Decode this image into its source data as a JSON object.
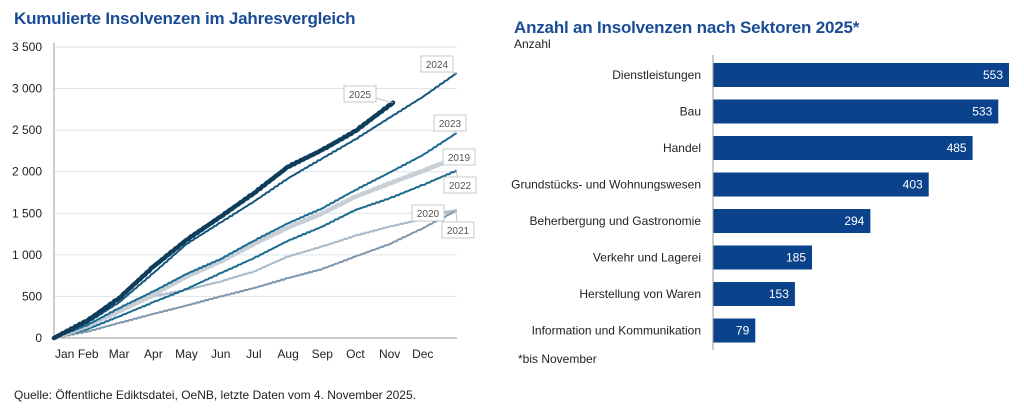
{
  "chart_data": [
    {
      "type": "line",
      "title": "Kumulierte Insolvenzen im Jahresvergleich",
      "xlabel": "",
      "ylabel": "",
      "x_tick_labels": [
        "Jan",
        "Feb",
        "Mar",
        "Apr",
        "May",
        "Jun",
        "Jul",
        "Aug",
        "Sep",
        "Oct",
        "Nov",
        "Dec"
      ],
      "y_tick_labels": [
        "0",
        "500",
        "1 000",
        "1 500",
        "2 000",
        "2 500",
        "3 000",
        "3 500"
      ],
      "ylim": [
        0,
        3500
      ],
      "grid": "horizontal",
      "series": [
        {
          "name": "2021",
          "color": "#7f97ad",
          "width": 2,
          "points": [
            [
              "01-01",
              0
            ],
            [
              "02-01",
              80
            ],
            [
              "03-01",
              180
            ],
            [
              "04-01",
              290
            ],
            [
              "05-01",
              390
            ],
            [
              "06-01",
              500
            ],
            [
              "07-01",
              600
            ],
            [
              "08-01",
              720
            ],
            [
              "09-01",
              830
            ],
            [
              "10-01",
              980
            ],
            [
              "11-01",
              1130
            ],
            [
              "12-01",
              1320
            ],
            [
              "12-31",
              1530
            ]
          ]
        },
        {
          "name": "2020",
          "color": "#a9b9c8",
          "width": 2,
          "points": [
            [
              "01-01",
              0
            ],
            [
              "02-01",
              140
            ],
            [
              "03-01",
              320
            ],
            [
              "04-01",
              500
            ],
            [
              "05-01",
              580
            ],
            [
              "06-01",
              680
            ],
            [
              "07-01",
              800
            ],
            [
              "08-01",
              980
            ],
            [
              "09-01",
              1100
            ],
            [
              "10-01",
              1230
            ],
            [
              "11-01",
              1340
            ],
            [
              "12-01",
              1430
            ],
            [
              "12-31",
              1540
            ]
          ]
        },
        {
          "name": "2022",
          "color": "#1b6a90",
          "width": 2,
          "points": [
            [
              "01-01",
              0
            ],
            [
              "02-01",
              110
            ],
            [
              "03-01",
              260
            ],
            [
              "04-01",
              430
            ],
            [
              "05-01",
              590
            ],
            [
              "06-01",
              780
            ],
            [
              "07-01",
              960
            ],
            [
              "08-01",
              1170
            ],
            [
              "09-01",
              1340
            ],
            [
              "10-01",
              1540
            ],
            [
              "11-01",
              1680
            ],
            [
              "12-01",
              1840
            ],
            [
              "12-31",
              2010
            ]
          ]
        },
        {
          "name": "2019",
          "color": "#c8cfd6",
          "width": 4.5,
          "points": [
            [
              "01-01",
              0
            ],
            [
              "02-01",
              150
            ],
            [
              "03-01",
              320
            ],
            [
              "04-01",
              520
            ],
            [
              "05-01",
              740
            ],
            [
              "06-01",
              920
            ],
            [
              "07-01",
              1130
            ],
            [
              "08-01",
              1330
            ],
            [
              "09-01",
              1500
            ],
            [
              "10-01",
              1700
            ],
            [
              "11-01",
              1860
            ],
            [
              "12-01",
              2010
            ],
            [
              "12-28",
              2150
            ]
          ]
        },
        {
          "name": "2023",
          "color": "#1b6a90",
          "width": 2,
          "points": [
            [
              "01-01",
              0
            ],
            [
              "02-01",
              160
            ],
            [
              "03-01",
              360
            ],
            [
              "04-01",
              560
            ],
            [
              "05-01",
              770
            ],
            [
              "06-01",
              950
            ],
            [
              "07-01",
              1170
            ],
            [
              "08-01",
              1380
            ],
            [
              "09-01",
              1560
            ],
            [
              "10-01",
              1780
            ],
            [
              "11-01",
              1990
            ],
            [
              "12-01",
              2200
            ],
            [
              "12-31",
              2460
            ]
          ]
        },
        {
          "name": "2024",
          "color": "#15587c",
          "width": 2,
          "points": [
            [
              "01-01",
              0
            ],
            [
              "02-01",
              190
            ],
            [
              "03-01",
              430
            ],
            [
              "04-01",
              780
            ],
            [
              "05-01",
              1130
            ],
            [
              "06-01",
              1390
            ],
            [
              "07-01",
              1640
            ],
            [
              "08-01",
              1920
            ],
            [
              "09-01",
              2160
            ],
            [
              "10-01",
              2390
            ],
            [
              "11-01",
              2650
            ],
            [
              "12-01",
              2900
            ],
            [
              "12-31",
              3180
            ]
          ]
        },
        {
          "name": "2025",
          "color": "#0e3d5c",
          "width": 4.5,
          "points": [
            [
              "01-01",
              0
            ],
            [
              "02-01",
              216
            ],
            [
              "03-01",
              480
            ],
            [
              "04-01",
              858
            ],
            [
              "05-01",
              1180
            ],
            [
              "06-01",
              1460
            ],
            [
              "07-01",
              1742
            ],
            [
              "08-01",
              2060
            ],
            [
              "09-01",
              2262
            ],
            [
              "10-01",
              2490
            ],
            [
              "11-04",
              2830
            ]
          ]
        }
      ]
    },
    {
      "type": "bar",
      "orientation": "horizontal",
      "title": "Anzahl an Insolvenzen nach Sektoren 2025*",
      "ylabel": "Anzahl",
      "color": "#0a428c",
      "categories": [
        "Dienstleistungen",
        "Bau",
        "Handel",
        "Grundstücks- und Wohnungswesen",
        "Beherbergung und Gastronomie",
        "Verkehr und Lagerei",
        "Herstellung von Waren",
        "Information und Kommunikation"
      ],
      "values": [
        553,
        533,
        485,
        403,
        294,
        185,
        153,
        79
      ],
      "note": "*bis November"
    }
  ],
  "footer": "Quelle: Öffentliche Ediktsdatei, OeNB, letzte Daten vom 4. November 2025."
}
